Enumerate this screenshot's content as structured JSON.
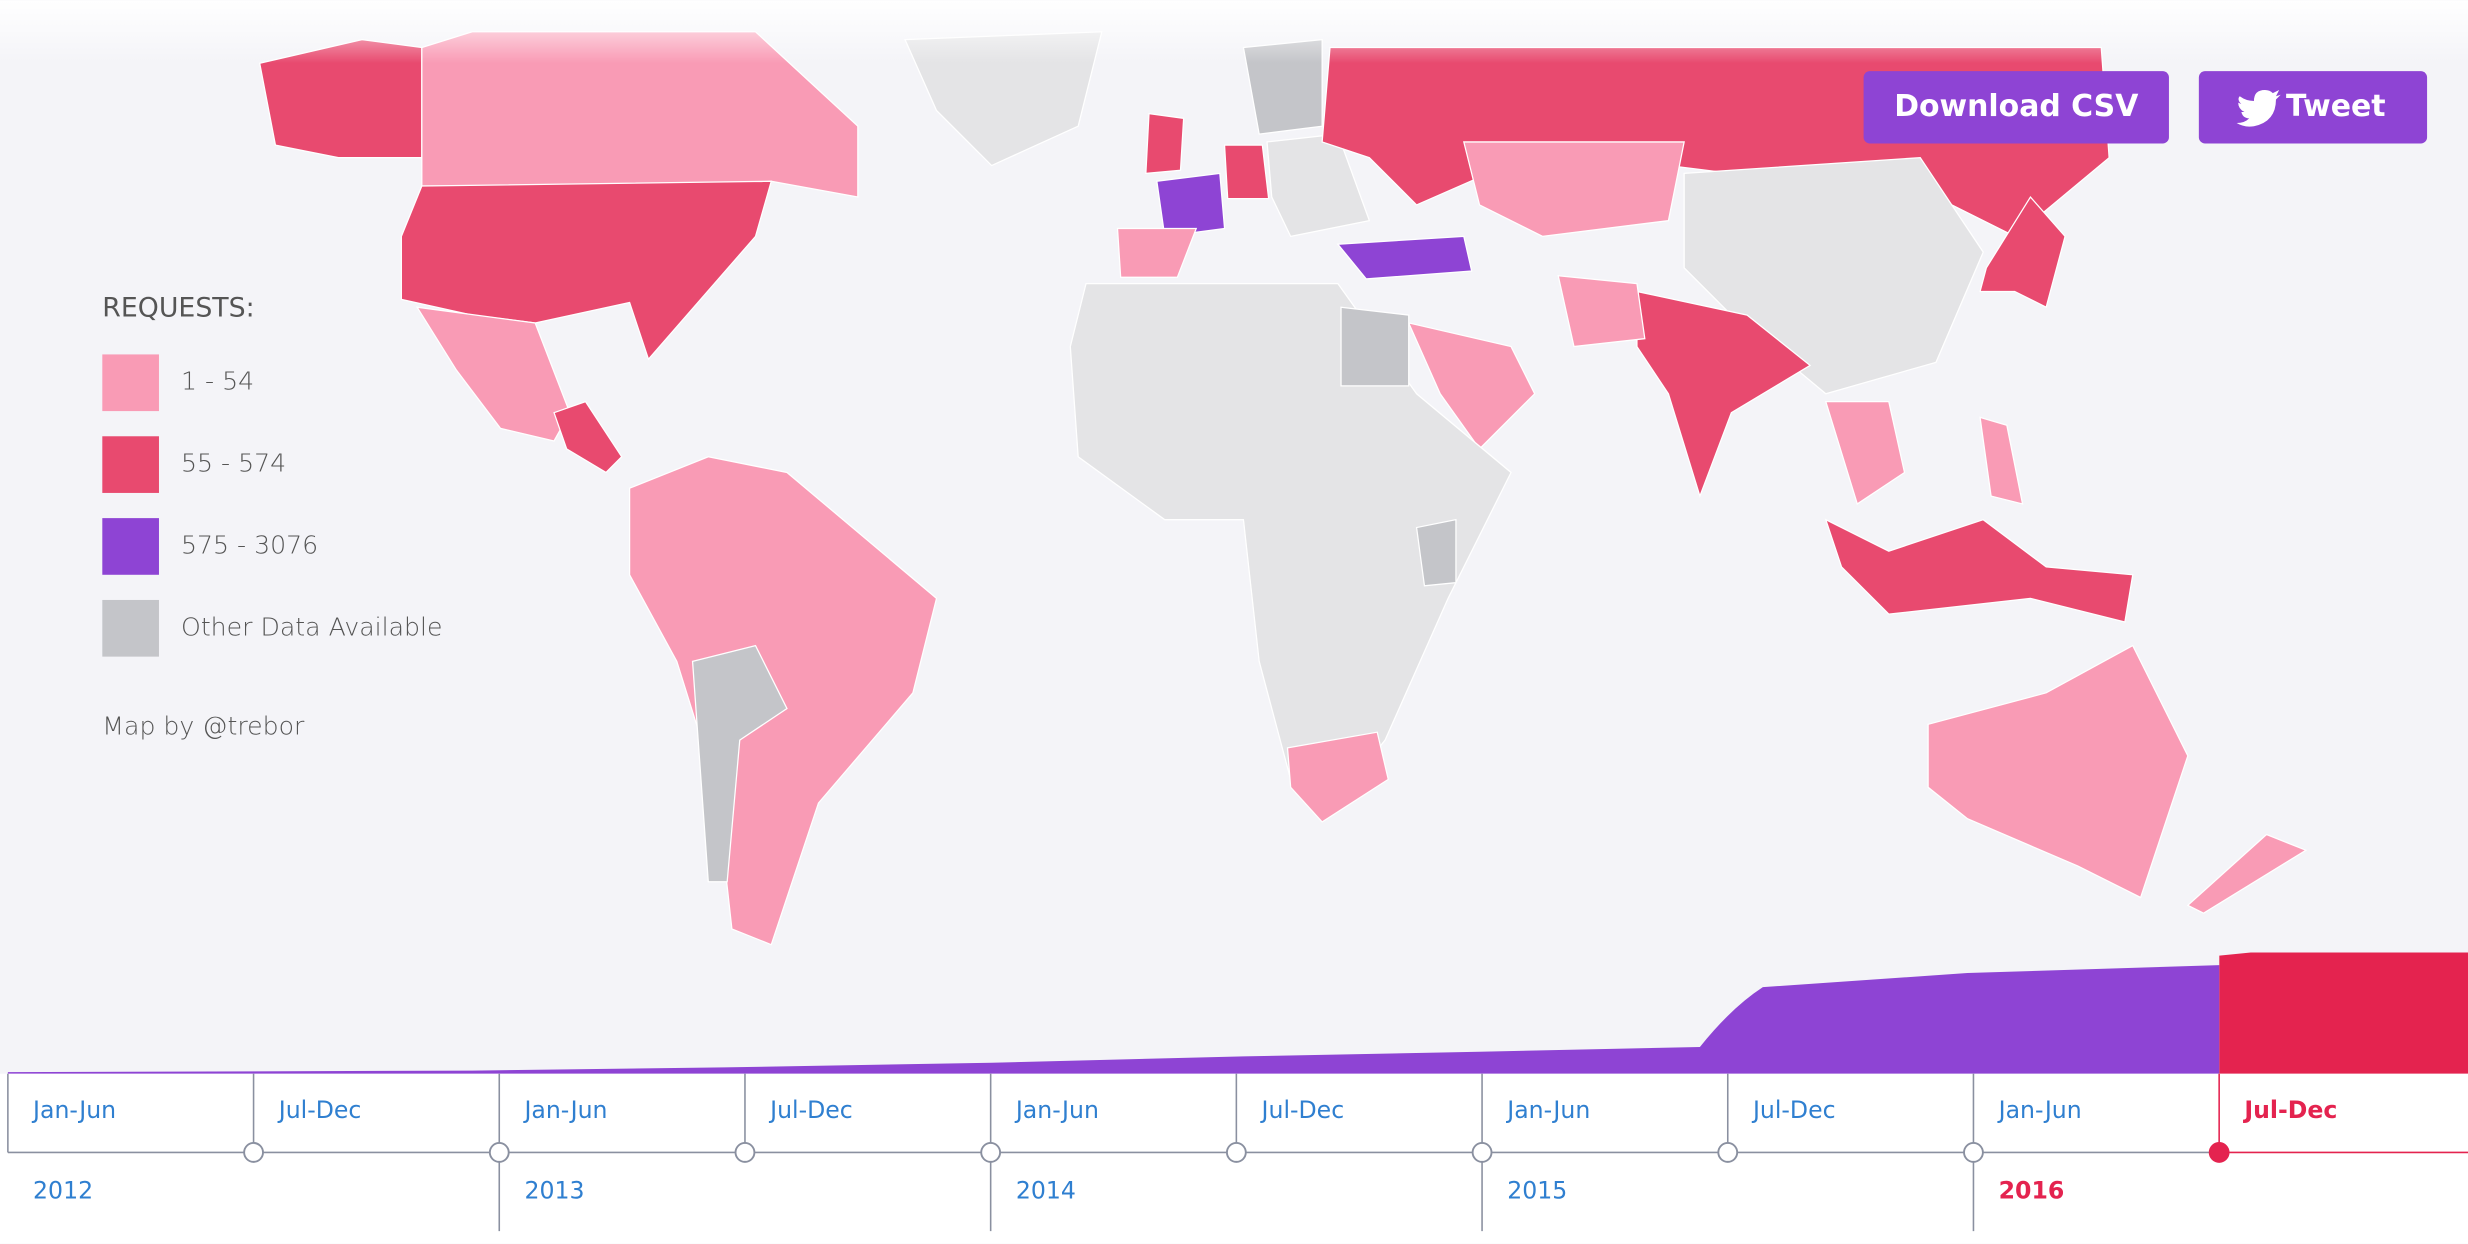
{
  "legend": {
    "title": "REQUESTS:",
    "items": [
      "1 - 54",
      "55 - 574",
      "575 - 3076",
      "Other Data Available"
    ]
  },
  "credit": "Map by @trebor",
  "buttons": [
    "Download CSV",
    "Tweet"
  ],
  "timeline": {
    "periods": [
      "Jan-Jun",
      "Jul-Dec",
      "Jan-Jun",
      "Jul-Dec",
      "Jan-Jun",
      "Jul-Dec",
      "Jan-Jun",
      "Jul-Dec",
      "Jan-Jun",
      "Jul-Dec"
    ],
    "years": [
      "2012",
      "2013",
      "2014",
      "2015",
      "2016"
    ]
  }
}
